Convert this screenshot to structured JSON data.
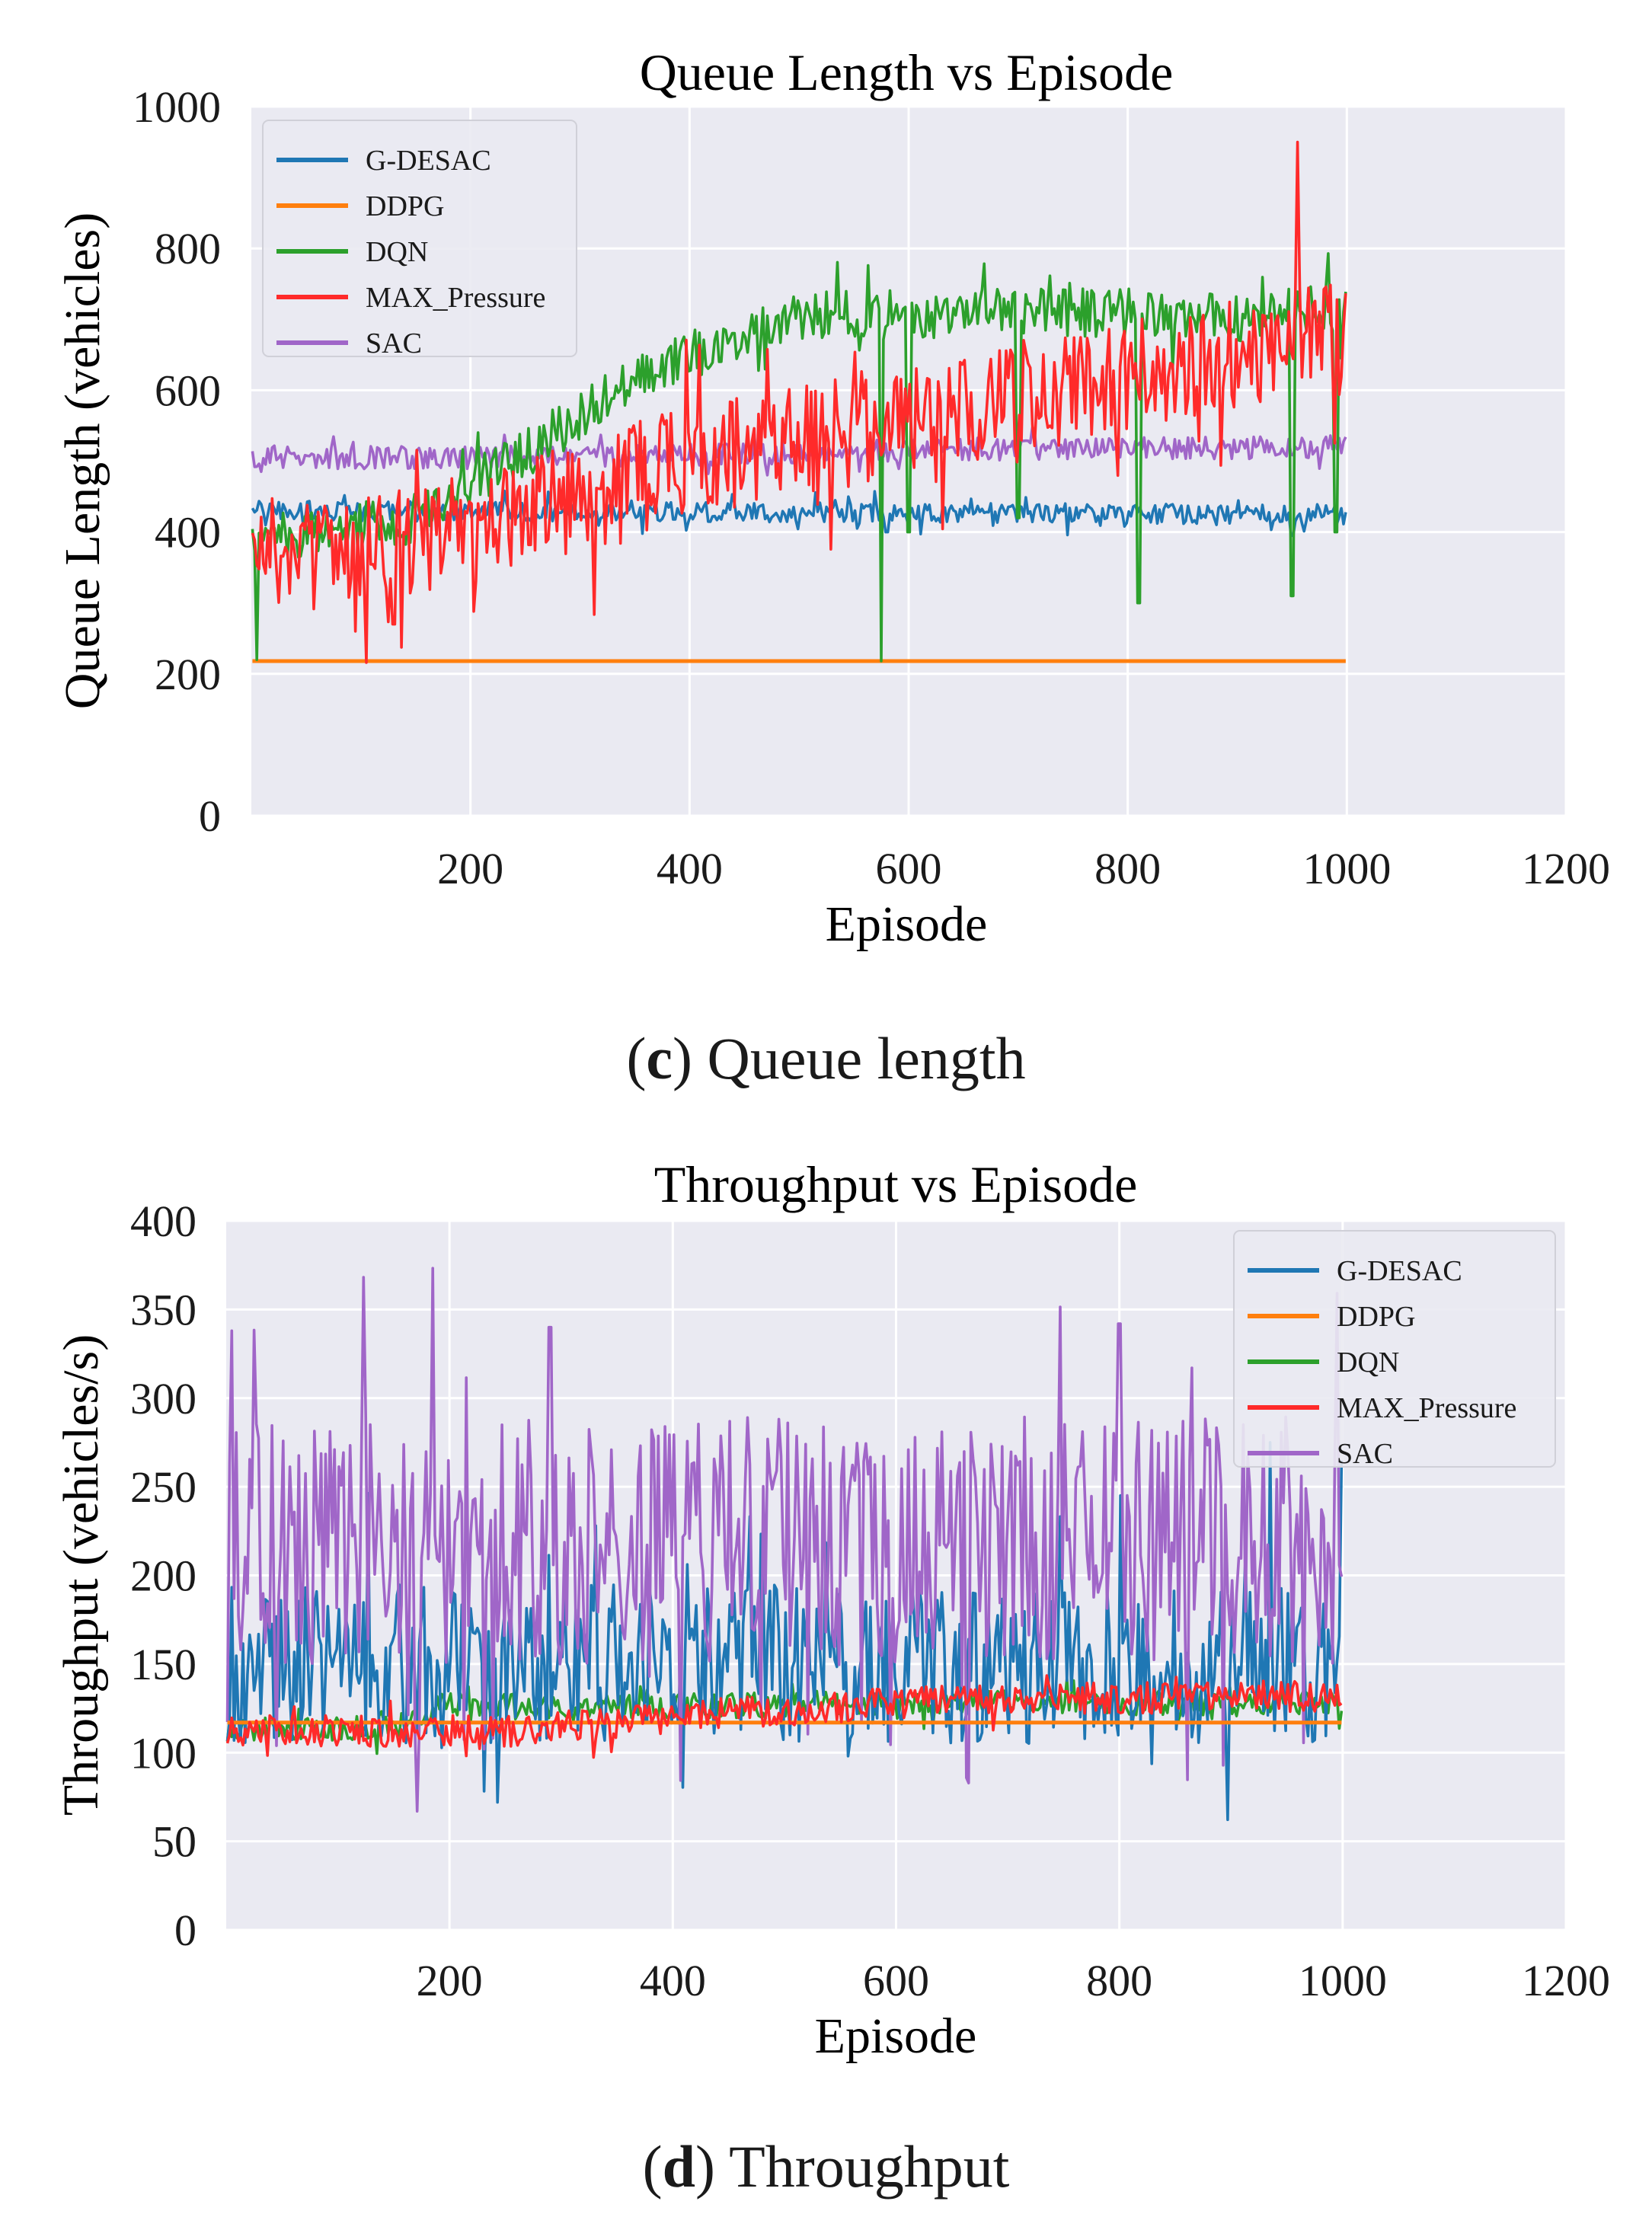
{
  "figure": {
    "caption_c": {
      "letter": "c",
      "text": "Queue length"
    },
    "caption_d": {
      "letter": "d",
      "text": "Throughput"
    }
  },
  "chart_data": [
    {
      "id": "queue",
      "type": "line",
      "title": "Queue Length vs Episode",
      "xlabel": "Episode",
      "ylabel": "Queue Length (vehicles)",
      "xlim": [
        0,
        1200
      ],
      "ylim": [
        0,
        1000
      ],
      "xticks": [
        200,
        400,
        600,
        800,
        1000,
        1200
      ],
      "yticks": [
        0,
        200,
        400,
        600,
        800,
        1000
      ],
      "grid": true,
      "legend_position": "top-left",
      "episodes": [
        1,
        1000
      ],
      "series": [
        {
          "name": "G-DESAC",
          "color": "#1f77b4",
          "trend": [
            [
              1,
              430
            ],
            [
              1000,
              425
            ]
          ],
          "noise": 14,
          "dips": [
            [
              580,
              400
            ],
            [
              950,
              395
            ]
          ]
        },
        {
          "name": "DDPG",
          "color": "#ff7f0e",
          "trend": [
            [
              1,
              218
            ],
            [
              1000,
              218
            ]
          ],
          "noise": 0,
          "dips": []
        },
        {
          "name": "DQN",
          "color": "#2ca02c",
          "trend": [
            [
              1,
              390
            ],
            [
              150,
              420
            ],
            [
              250,
              510
            ],
            [
              350,
              620
            ],
            [
              450,
              680
            ],
            [
              500,
              705
            ],
            [
              800,
              710
            ],
            [
              900,
              700
            ],
            [
              1000,
              720
            ]
          ],
          "noise": 35,
          "dips": [
            [
              5,
              220
            ],
            [
              575,
              218
            ],
            [
              600,
              400
            ],
            [
              700,
              420
            ],
            [
              810,
              300
            ],
            [
              950,
              310
            ],
            [
              990,
              400
            ]
          ]
        },
        {
          "name": "MAX_Pressure",
          "color": "#ff2a2a",
          "trend": [
            [
              1,
              360
            ],
            [
              200,
              400
            ],
            [
              400,
              500
            ],
            [
              600,
              560
            ],
            [
              800,
              620
            ],
            [
              1000,
              680
            ]
          ],
          "noise": 80,
          "dips": [
            [
              95,
              260
            ],
            [
              130,
              270
            ],
            [
              955,
              950
            ]
          ]
        },
        {
          "name": "SAC",
          "color": "#a066c8",
          "trend": [
            [
              1,
              505
            ],
            [
              300,
              505
            ],
            [
              600,
              515
            ],
            [
              1000,
              520
            ]
          ],
          "noise": 16,
          "dips": []
        }
      ]
    },
    {
      "id": "throughput",
      "type": "line",
      "title": "Throughput vs Episode",
      "xlabel": "Episode",
      "ylabel": "Throughput (vehicles/s)",
      "xlim": [
        0,
        1200
      ],
      "ylim": [
        0,
        400
      ],
      "xticks": [
        200,
        400,
        600,
        800,
        1000,
        1200
      ],
      "yticks": [
        0,
        50,
        100,
        150,
        200,
        250,
        300,
        350,
        400
      ],
      "grid": true,
      "legend_position": "top-right",
      "episodes": [
        1,
        1000
      ],
      "series": [
        {
          "name": "G-DESAC",
          "color": "#1f77b4",
          "trend": [
            [
              1,
              150
            ],
            [
              1000,
              150
            ]
          ],
          "noise": 45,
          "dips": [
            [
              935,
              275
            ],
            [
              1000,
              265
            ]
          ]
        },
        {
          "name": "DDPG",
          "color": "#ff7f0e",
          "trend": [
            [
              1,
              117
            ],
            [
              1000,
              117
            ]
          ],
          "noise": 0,
          "dips": []
        },
        {
          "name": "DQN",
          "color": "#2ca02c",
          "trend": [
            [
              1,
              112
            ],
            [
              150,
              115
            ],
            [
              200,
              128
            ],
            [
              300,
              125
            ],
            [
              600,
              128
            ],
            [
              1000,
              128
            ]
          ],
          "noise": 7,
          "dips": []
        },
        {
          "name": "MAX_Pressure",
          "color": "#ff2a2a",
          "trend": [
            [
              1,
              112
            ],
            [
              250,
              112
            ],
            [
              450,
              122
            ],
            [
              650,
              130
            ],
            [
              1000,
              132
            ]
          ],
          "noise": 9,
          "dips": []
        },
        {
          "name": "SAC",
          "color": "#a066c8",
          "trend": [
            [
              1,
              220
            ],
            [
              1000,
              220
            ]
          ],
          "noise": 70,
          "dips": [
            [
              5,
              338
            ],
            [
              290,
              340
            ],
            [
              800,
              342
            ]
          ]
        }
      ]
    }
  ]
}
